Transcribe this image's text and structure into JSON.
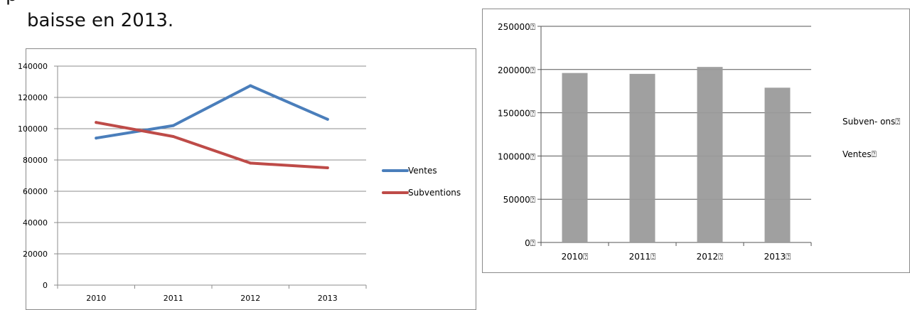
{
  "page": {
    "caption_top": "p",
    "caption": "baisse en 2013."
  },
  "chart_data": [
    {
      "type": "line",
      "categories": [
        "2010",
        "2011",
        "2012",
        "2013"
      ],
      "series": [
        {
          "name": "Ventes",
          "values": [
            94000,
            102000,
            127500,
            106000
          ],
          "color": "#4a7ebb"
        },
        {
          "name": "Subventions",
          "values": [
            104000,
            95000,
            78000,
            75000
          ],
          "color": "#be4b48"
        }
      ],
      "ylim": [
        0,
        140000
      ],
      "yticks": [
        "0",
        "20000",
        "40000",
        "60000",
        "80000",
        "100000",
        "120000",
        "140000"
      ],
      "grid": true,
      "legend": "right"
    },
    {
      "type": "bar",
      "categories": [
        "2010⍰",
        "2011⍰",
        "2012⍰",
        "2013⍰"
      ],
      "values": [
        196000,
        195000,
        203000,
        179000
      ],
      "ylim": [
        0,
        250000
      ],
      "yticks": [
        "0⍰",
        "50000⍰",
        "100000⍰",
        "150000⍰",
        "200000⍰",
        "250000⍰"
      ],
      "legend_entries": [
        "Subven- ons⍰",
        "Ventes⍰"
      ],
      "bar_color": "#9b9b9b",
      "grid": true,
      "legend": "right"
    }
  ]
}
